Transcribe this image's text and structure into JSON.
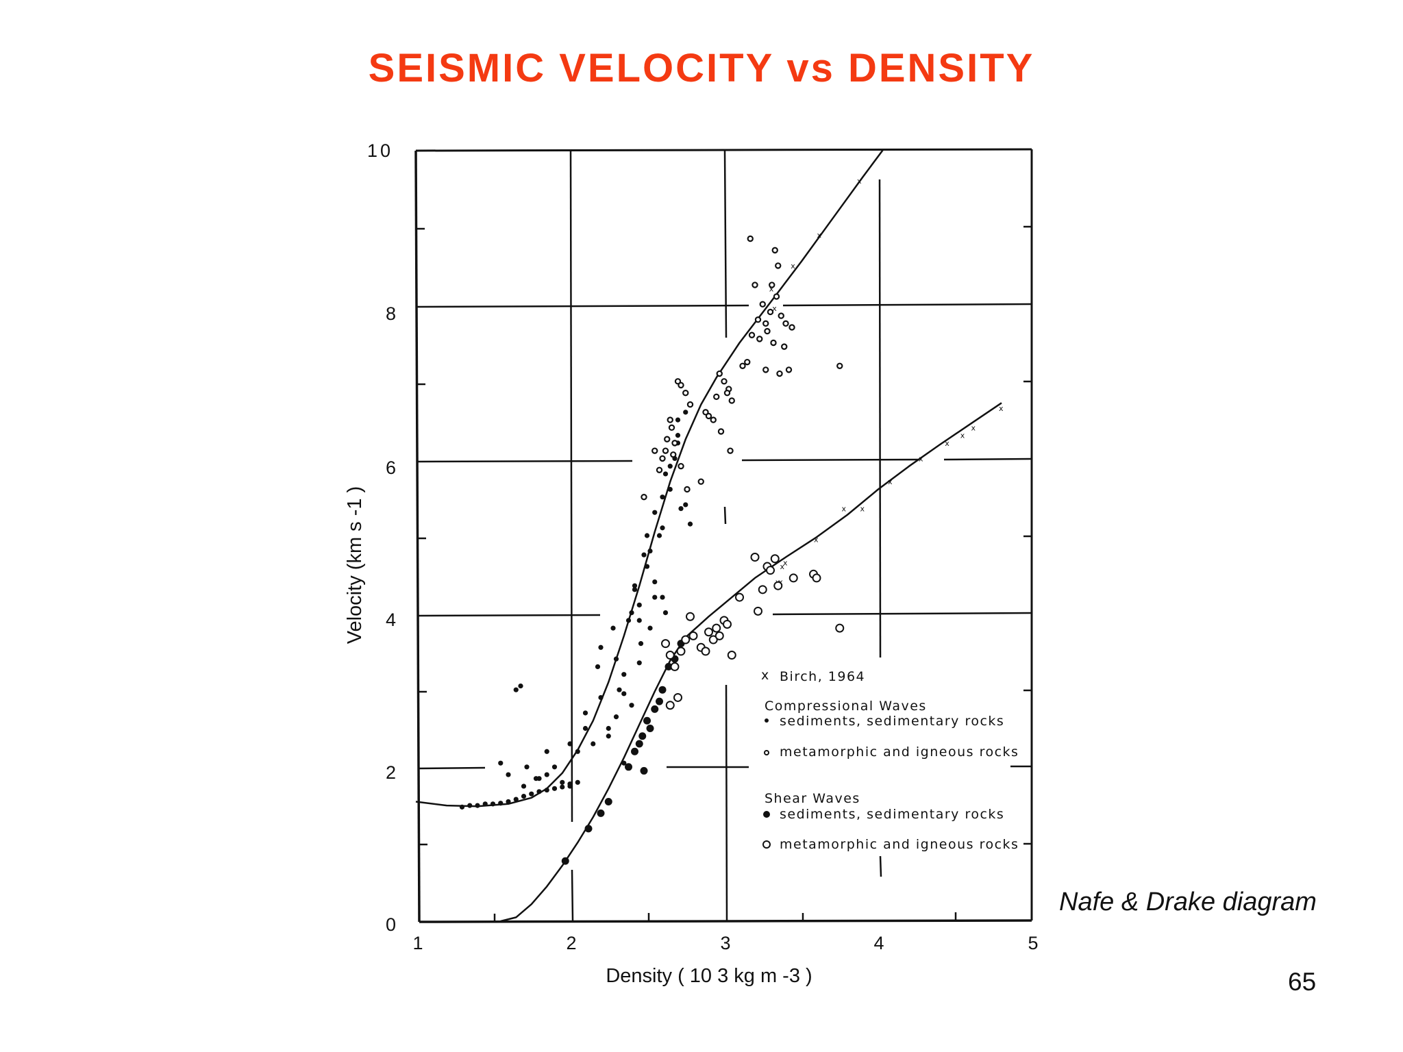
{
  "slide": {
    "title": "SEISMIC VELOCITY vs DENSITY",
    "caption": "Nafe & Drake diagram",
    "page_number": "65",
    "title_color": "#f43a12"
  },
  "chart_data": {
    "type": "scatter",
    "title": "SEISMIC VELOCITY vs DENSITY",
    "xlabel": "Density ( 10 3 kg m -3 )",
    "ylabel": "Velocity (km s -1 )",
    "xlim": [
      1,
      5
    ],
    "ylim": [
      0,
      10
    ],
    "x_ticks": [
      "1",
      "2",
      "3",
      "4",
      "5"
    ],
    "y_ticks": [
      "0",
      "2",
      "4",
      "6",
      "8",
      "10"
    ],
    "grid": true,
    "legend": {
      "position": "lower right inside plot",
      "entries": [
        {
          "marker": "small-cross",
          "label": "Birch, 1964"
        },
        {
          "heading": "Compressional Waves"
        },
        {
          "marker": "small-filled-dot",
          "label": "sediments, sedimentary rocks"
        },
        {
          "marker": "small-open-circle",
          "label": "metamorphic and igneous rocks"
        },
        {
          "heading": "Shear Waves"
        },
        {
          "marker": "large-filled-dot",
          "label": "sediments, sedimentary rocks"
        },
        {
          "marker": "large-open-circle",
          "label": "metamorphic and igneous rocks"
        }
      ]
    },
    "series": [
      {
        "name": "Compressional wave fit (Nafe-Drake curve)",
        "style": "line",
        "x": [
          1.0,
          1.2,
          1.4,
          1.6,
          1.75,
          1.85,
          1.95,
          2.05,
          2.15,
          2.25,
          2.35,
          2.45,
          2.55,
          2.65,
          2.75,
          2.85,
          2.95,
          3.1,
          3.31,
          3.5,
          3.7,
          3.9,
          4.03
        ],
        "y": [
          1.55,
          1.5,
          1.49,
          1.52,
          1.6,
          1.72,
          1.92,
          2.22,
          2.6,
          3.1,
          3.7,
          4.35,
          5.05,
          5.7,
          6.25,
          6.7,
          7.05,
          7.5,
          8.05,
          8.55,
          9.1,
          9.65,
          10.0
        ]
      },
      {
        "name": "Shear wave fit",
        "style": "line",
        "x": [
          1.55,
          1.65,
          1.75,
          1.85,
          1.95,
          2.05,
          2.15,
          2.25,
          2.35,
          2.45,
          2.55,
          2.65,
          2.75,
          2.9,
          3.05,
          3.2,
          3.4,
          3.6,
          3.8,
          4.0,
          4.2,
          4.4,
          4.6,
          4.8
        ],
        "y": [
          0.0,
          0.05,
          0.22,
          0.45,
          0.72,
          1.02,
          1.35,
          1.72,
          2.12,
          2.55,
          2.98,
          3.38,
          3.68,
          3.95,
          4.2,
          4.45,
          4.72,
          4.98,
          5.27,
          5.6,
          5.9,
          6.18,
          6.45,
          6.72
        ]
      },
      {
        "name": "Birch, 1964",
        "marker": "small-cross",
        "x": [
          3.31,
          3.45,
          3.62,
          3.88,
          3.33,
          3.38,
          3.4,
          3.35,
          3.37,
          3.6,
          3.78,
          3.9,
          4.08,
          4.28,
          4.45,
          4.55,
          4.62,
          4.8
        ],
        "y": [
          8.2,
          8.5,
          8.9,
          9.6,
          7.95,
          4.6,
          4.65,
          4.4,
          4.4,
          4.95,
          5.35,
          5.35,
          5.7,
          6.0,
          6.2,
          6.3,
          6.4,
          6.65
        ]
      },
      {
        "name": "Compressional Waves - sediments, sedimentary rocks",
        "marker": "small-filled-dot",
        "x": [
          1.3,
          1.35,
          1.4,
          1.45,
          1.5,
          1.55,
          1.6,
          1.65,
          1.7,
          1.75,
          1.8,
          1.85,
          1.9,
          1.95,
          2.0,
          1.55,
          1.6,
          1.7,
          1.72,
          1.8,
          1.85,
          1.9,
          1.95,
          2.0,
          2.05,
          2.1,
          2.15,
          2.2,
          2.25,
          2.3,
          2.35,
          2.4,
          2.45,
          2.5,
          2.55,
          2.6,
          2.65,
          2.7,
          2.75,
          2.2,
          2.28,
          2.32,
          2.38,
          2.42,
          2.45,
          2.48,
          2.5,
          2.52,
          2.55,
          2.58,
          2.6,
          2.62,
          2.65,
          2.68,
          2.7,
          2.72,
          2.75,
          2.78,
          2.42,
          2.46,
          2.55,
          2.62,
          2.7,
          1.65,
          1.68,
          2.3,
          2.4,
          2.52,
          2.1,
          2.18,
          2.25,
          2.35,
          2.45,
          2.6,
          2.35,
          2.0,
          2.05,
          1.85,
          1.78
        ],
        "y": [
          1.48,
          1.5,
          1.5,
          1.52,
          1.52,
          1.53,
          1.55,
          1.58,
          1.62,
          1.65,
          1.68,
          1.7,
          1.72,
          1.74,
          1.75,
          2.05,
          1.9,
          1.75,
          2.0,
          1.85,
          2.2,
          2.0,
          1.8,
          2.3,
          2.2,
          2.5,
          2.3,
          2.9,
          2.4,
          3.4,
          3.2,
          4.0,
          3.9,
          4.6,
          4.4,
          5.1,
          5.6,
          6.2,
          6.6,
          3.55,
          3.8,
          3.0,
          3.9,
          4.35,
          4.1,
          4.75,
          5.0,
          4.8,
          5.3,
          5.0,
          5.5,
          5.8,
          5.9,
          6.0,
          6.5,
          5.35,
          5.4,
          5.15,
          4.3,
          3.6,
          4.2,
          4.0,
          6.3,
          3.0,
          3.05,
          2.65,
          2.8,
          3.8,
          2.7,
          3.3,
          2.5,
          2.95,
          3.35,
          4.2,
          2.05,
          1.78,
          1.8,
          1.9,
          1.85
        ]
      },
      {
        "name": "Compressional Waves - metamorphic and igneous rocks",
        "marker": "small-open-circle",
        "x": [
          3.17,
          3.33,
          3.35,
          3.2,
          3.31,
          3.34,
          3.25,
          3.3,
          3.22,
          3.27,
          3.37,
          3.4,
          3.44,
          3.28,
          3.18,
          3.23,
          3.32,
          3.39,
          3.42,
          3.75,
          3.12,
          3.15,
          3.27,
          3.36,
          2.97,
          3.0,
          3.03,
          3.05,
          2.95,
          2.9,
          2.88,
          2.93,
          2.98,
          3.02,
          2.7,
          2.72,
          2.75,
          2.78,
          2.65,
          2.66,
          2.68,
          2.62,
          2.6,
          2.58,
          2.63,
          2.67,
          2.72,
          2.76,
          2.55,
          2.48,
          2.85,
          3.04
        ],
        "y": [
          8.85,
          8.7,
          8.5,
          8.25,
          8.25,
          8.1,
          8.0,
          7.9,
          7.8,
          7.75,
          7.85,
          7.75,
          7.7,
          7.65,
          7.6,
          7.55,
          7.5,
          7.45,
          7.15,
          7.2,
          7.2,
          7.25,
          7.15,
          7.1,
          7.1,
          7.0,
          6.9,
          6.75,
          6.8,
          6.55,
          6.6,
          6.5,
          6.35,
          6.85,
          7.0,
          6.95,
          6.85,
          6.7,
          6.5,
          6.4,
          6.2,
          6.1,
          6.0,
          5.85,
          6.25,
          6.05,
          5.9,
          5.6,
          6.1,
          5.5,
          5.7,
          6.1
        ]
      },
      {
        "name": "Shear Waves - sediments, sedimentary rocks",
        "marker": "large-filled-dot",
        "x": [
          1.97,
          2.12,
          2.2,
          2.25,
          2.38,
          2.42,
          2.47,
          2.5,
          2.55,
          2.58,
          2.6,
          2.64,
          2.68,
          2.72,
          2.48,
          2.52,
          2.45
        ],
        "y": [
          0.78,
          1.2,
          1.4,
          1.55,
          2.0,
          2.2,
          2.4,
          2.6,
          2.75,
          2.85,
          3.0,
          3.3,
          3.4,
          3.6,
          1.95,
          2.5,
          2.3
        ],
        "note": "approximate readings of scattered points"
      },
      {
        "name": "Shear Waves - metamorphic and igneous rocks",
        "marker": "large-open-circle",
        "x": [
          2.62,
          2.65,
          2.68,
          2.72,
          2.75,
          2.8,
          2.85,
          2.9,
          2.93,
          2.95,
          2.97,
          3.0,
          3.02,
          3.05,
          3.1,
          3.2,
          3.25,
          3.28,
          3.3,
          3.33,
          3.35,
          3.45,
          3.58,
          3.6,
          3.75,
          3.22,
          2.65,
          2.7,
          2.78,
          2.88
        ],
        "y": [
          3.6,
          3.45,
          3.3,
          3.5,
          3.65,
          3.7,
          3.55,
          3.75,
          3.65,
          3.8,
          3.7,
          3.9,
          3.85,
          3.45,
          4.2,
          4.72,
          4.3,
          4.6,
          4.55,
          4.7,
          4.35,
          4.45,
          4.5,
          4.45,
          3.8,
          4.02,
          2.8,
          2.9,
          3.95,
          3.5
        ]
      }
    ]
  }
}
